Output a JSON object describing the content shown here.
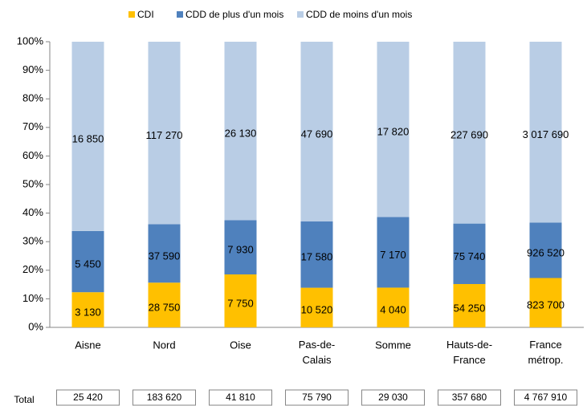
{
  "chart_data": {
    "type": "bar",
    "stacked": "percent",
    "categories": [
      "Aisne",
      "Nord",
      "Oise",
      "Pas-de-Calais",
      "Somme",
      "Hauts-de-France",
      "France métrop."
    ],
    "series": [
      {
        "name": "CDI",
        "color": "#ffc000",
        "values": [
          3130,
          28750,
          7750,
          10520,
          4040,
          54250,
          823700
        ],
        "value_labels": [
          "3 130",
          "28 750",
          "7 750",
          "10 520",
          "4 040",
          "54 250",
          "823 700"
        ]
      },
      {
        "name": "CDD de plus d'un mois",
        "color": "#4f81bd",
        "values": [
          5450,
          37590,
          7930,
          17580,
          7170,
          75740,
          926520
        ],
        "value_labels": [
          "5 450",
          "37 590",
          "7 930",
          "17 580",
          "7 170",
          "75 740",
          "926 520"
        ]
      },
      {
        "name": "CDD de moins d'un mois",
        "color": "#b9cde5",
        "values": [
          16850,
          117270,
          26130,
          47690,
          17820,
          227690,
          3017690
        ],
        "value_labels": [
          "16 850",
          "117 270",
          "26 130",
          "47 690",
          "17 820",
          "227 690",
          "3 017 690"
        ]
      }
    ],
    "total_label": "Total",
    "totals": [
      {
        "value": 25420,
        "label": "25 420"
      },
      {
        "value": 183620,
        "label": "183 620"
      },
      {
        "value": 41810,
        "label": "41 810"
      },
      {
        "value": 75790,
        "label": "75 790"
      },
      {
        "value": 29030,
        "label": "29 030"
      },
      {
        "value": 357680,
        "label": "357 680"
      },
      {
        "value": 4767910,
        "label": "4 767 910"
      }
    ],
    "ylim": [
      0,
      100
    ],
    "yticks": [
      {
        "value": 0,
        "label": "0%"
      },
      {
        "value": 10,
        "label": "10%"
      },
      {
        "value": 20,
        "label": "20%"
      },
      {
        "value": 30,
        "label": "30%"
      },
      {
        "value": 40,
        "label": "40%"
      },
      {
        "value": 50,
        "label": "50%"
      },
      {
        "value": 60,
        "label": "60%"
      },
      {
        "value": 70,
        "label": "70%"
      },
      {
        "value": 80,
        "label": "80%"
      },
      {
        "value": 90,
        "label": "90%"
      },
      {
        "value": 100,
        "label": "100%"
      }
    ],
    "legend": "top",
    "grid": false
  }
}
